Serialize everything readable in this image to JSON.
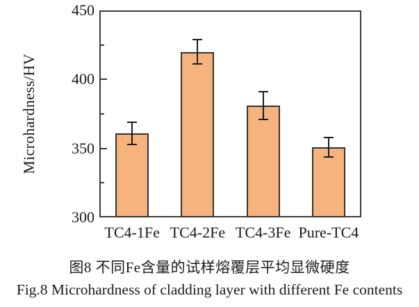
{
  "figure": {
    "caption_zh": "图8  不同Fe含量的试样熔覆层平均显微硬度",
    "caption_en": "Fig.8  Microhardness of cladding layer with different Fe contents"
  },
  "chart_data": {
    "type": "bar",
    "title": "",
    "categories": [
      "TC4-1Fe",
      "TC4-2Fe",
      "TC4-3Fe",
      "Pure-TC4"
    ],
    "values": [
      361,
      420,
      381,
      351
    ],
    "errors": [
      8,
      9,
      10,
      7
    ],
    "xlabel": "",
    "ylabel": "Microhardness/HV",
    "ylim": [
      300,
      450
    ],
    "yticks": [
      300,
      350,
      400,
      450
    ],
    "minor_yticks": [
      325,
      375,
      425
    ],
    "bar_color": "#F6B37E",
    "bar_border_color": "#333333",
    "error_bar_color": "#1a1a1a",
    "axis_color": "#3a3a3a",
    "grid": false,
    "legend": false,
    "tick_direction": "in"
  }
}
